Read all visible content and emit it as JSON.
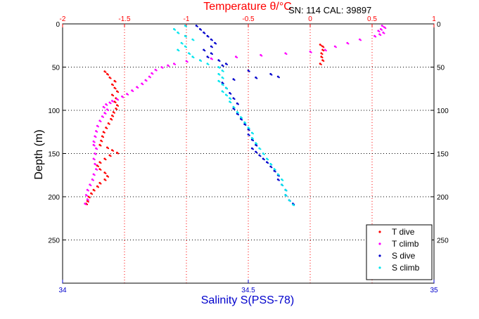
{
  "chart_data": {
    "type": "scatter",
    "top_axis": {
      "label": "Temperature θ/°C",
      "range": [
        -2,
        1
      ],
      "ticks": [
        -2,
        -1.5,
        -1,
        -0.5,
        0,
        0.5,
        1
      ],
      "tick_labels": [
        "-2",
        "-1.5",
        "-1",
        "-0.5",
        "0",
        "0.5",
        "1"
      ],
      "color": "#ff0000"
    },
    "bottom_axis": {
      "label": "Salinity S(PSS-78)",
      "range": [
        34,
        35
      ],
      "ticks": [
        34,
        34.5,
        35
      ],
      "tick_labels": [
        "34",
        "34.5",
        "35"
      ],
      "color": "#0000cc"
    },
    "y_axis": {
      "label": "Depth (m)",
      "range": [
        0,
        300
      ],
      "reversed": true,
      "ticks": [
        0,
        50,
        100,
        150,
        200,
        250
      ],
      "tick_labels": [
        "0",
        "50",
        "100",
        "150",
        "200",
        "250"
      ]
    },
    "annotation": "SN: 114  CAL: 39897",
    "grid": "dotted",
    "legend_position": "bottom-right",
    "series": [
      {
        "name": "T dive",
        "axis": "temperature",
        "color": "#ff0000",
        "points": [
          [
            0.08,
            24
          ],
          [
            0.1,
            26
          ],
          [
            0.1,
            30
          ],
          [
            0.09,
            34
          ],
          [
            0.09,
            38
          ],
          [
            0.1,
            42
          ],
          [
            0.08,
            46
          ],
          [
            -1.66,
            55
          ],
          [
            -1.64,
            58
          ],
          [
            -1.62,
            62
          ],
          [
            -1.58,
            66
          ],
          [
            -1.6,
            70
          ],
          [
            -1.58,
            74
          ],
          [
            -1.56,
            78
          ],
          [
            -1.6,
            82
          ],
          [
            -1.57,
            86
          ],
          [
            -1.58,
            90
          ],
          [
            -1.56,
            94
          ],
          [
            -1.57,
            98
          ],
          [
            -1.59,
            102
          ],
          [
            -1.6,
            106
          ],
          [
            -1.61,
            110
          ],
          [
            -1.63,
            115
          ],
          [
            -1.65,
            120
          ],
          [
            -1.67,
            125
          ],
          [
            -1.68,
            130
          ],
          [
            -1.69,
            135
          ],
          [
            -1.7,
            140
          ],
          [
            -1.64,
            143
          ],
          [
            -1.6,
            146
          ],
          [
            -1.56,
            149
          ],
          [
            -1.62,
            152
          ],
          [
            -1.66,
            156
          ],
          [
            -1.7,
            160
          ],
          [
            -1.72,
            164
          ],
          [
            -1.7,
            168
          ],
          [
            -1.66,
            172
          ],
          [
            -1.64,
            176
          ],
          [
            -1.66,
            180
          ],
          [
            -1.7,
            184
          ],
          [
            -1.72,
            188
          ],
          [
            -1.75,
            192
          ],
          [
            -1.77,
            196
          ],
          [
            -1.79,
            200
          ],
          [
            -1.8,
            205
          ],
          [
            -1.81,
            208
          ]
        ]
      },
      {
        "name": "T climb",
        "axis": "temperature",
        "color": "#ff00ff",
        "points": [
          [
            0.58,
            2
          ],
          [
            0.6,
            4
          ],
          [
            0.57,
            6
          ],
          [
            0.55,
            8
          ],
          [
            0.59,
            10
          ],
          [
            0.56,
            12
          ],
          [
            0.52,
            14
          ],
          [
            0.4,
            18
          ],
          [
            0.3,
            22
          ],
          [
            0.2,
            26
          ],
          [
            0.12,
            30
          ],
          [
            0.0,
            32
          ],
          [
            -0.2,
            34
          ],
          [
            -0.4,
            36
          ],
          [
            -0.6,
            38
          ],
          [
            -0.8,
            40
          ],
          [
            -1.0,
            43
          ],
          [
            -1.1,
            46
          ],
          [
            -1.15,
            48
          ],
          [
            -1.2,
            50
          ],
          [
            -1.25,
            53
          ],
          [
            -1.28,
            57
          ],
          [
            -1.3,
            61
          ],
          [
            -1.33,
            65
          ],
          [
            -1.36,
            69
          ],
          [
            -1.4,
            73
          ],
          [
            -1.44,
            77
          ],
          [
            -1.48,
            81
          ],
          [
            -1.52,
            84
          ],
          [
            -1.56,
            87
          ],
          [
            -1.6,
            89
          ],
          [
            -1.62,
            91
          ],
          [
            -1.65,
            93
          ],
          [
            -1.67,
            96
          ],
          [
            -1.64,
            99
          ],
          [
            -1.66,
            103
          ],
          [
            -1.68,
            107
          ],
          [
            -1.7,
            112
          ],
          [
            -1.72,
            118
          ],
          [
            -1.73,
            124
          ],
          [
            -1.74,
            130
          ],
          [
            -1.75,
            136
          ],
          [
            -1.75,
            140
          ],
          [
            -1.73,
            144
          ],
          [
            -1.74,
            150
          ],
          [
            -1.75,
            156
          ],
          [
            -1.74,
            162
          ],
          [
            -1.73,
            168
          ],
          [
            -1.75,
            174
          ],
          [
            -1.76,
            180
          ],
          [
            -1.78,
            186
          ],
          [
            -1.8,
            192
          ],
          [
            -1.81,
            198
          ],
          [
            -1.8,
            203
          ],
          [
            -1.82,
            208
          ]
        ]
      },
      {
        "name": "S dive",
        "axis": "salinity",
        "color": "#0000cc",
        "points": [
          [
            34.36,
            2
          ],
          [
            34.37,
            6
          ],
          [
            34.38,
            10
          ],
          [
            34.39,
            14
          ],
          [
            34.4,
            18
          ],
          [
            34.41,
            22
          ],
          [
            34.4,
            26
          ],
          [
            34.38,
            30
          ],
          [
            34.4,
            34
          ],
          [
            34.39,
            38
          ],
          [
            34.42,
            42
          ],
          [
            34.44,
            46
          ],
          [
            34.43,
            48
          ],
          [
            34.5,
            54
          ],
          [
            34.56,
            58
          ],
          [
            34.58,
            61
          ],
          [
            34.52,
            62
          ],
          [
            34.46,
            64
          ],
          [
            34.43,
            68
          ],
          [
            34.44,
            74
          ],
          [
            34.45,
            80
          ],
          [
            34.46,
            86
          ],
          [
            34.47,
            92
          ],
          [
            34.46,
            98
          ],
          [
            34.47,
            104
          ],
          [
            34.48,
            110
          ],
          [
            34.49,
            116
          ],
          [
            34.5,
            122
          ],
          [
            34.5,
            128
          ],
          [
            34.51,
            134
          ],
          [
            34.52,
            140
          ],
          [
            34.51,
            144
          ],
          [
            34.52,
            148
          ],
          [
            34.53,
            152
          ],
          [
            34.54,
            156
          ],
          [
            34.55,
            160
          ],
          [
            34.56,
            165
          ],
          [
            34.57,
            170
          ],
          [
            34.58,
            175
          ],
          [
            34.58,
            180
          ],
          [
            34.59,
            186
          ],
          [
            34.6,
            192
          ],
          [
            34.6,
            198
          ],
          [
            34.61,
            204
          ],
          [
            34.62,
            208
          ]
        ]
      },
      {
        "name": "S climb",
        "axis": "salinity",
        "color": "#00e5ee",
        "points": [
          [
            34.33,
            2
          ],
          [
            34.3,
            6
          ],
          [
            34.31,
            10
          ],
          [
            34.33,
            14
          ],
          [
            34.35,
            18
          ],
          [
            34.32,
            22
          ],
          [
            34.33,
            26
          ],
          [
            34.31,
            30
          ],
          [
            34.34,
            34
          ],
          [
            34.35,
            38
          ],
          [
            34.37,
            42
          ],
          [
            34.39,
            46
          ],
          [
            34.42,
            50
          ],
          [
            34.43,
            54
          ],
          [
            34.42,
            58
          ],
          [
            34.43,
            62
          ],
          [
            34.42,
            66
          ],
          [
            34.43,
            70
          ],
          [
            34.44,
            74
          ],
          [
            34.43,
            78
          ],
          [
            34.44,
            82
          ],
          [
            34.45,
            86
          ],
          [
            34.45,
            90
          ],
          [
            34.46,
            96
          ],
          [
            34.47,
            102
          ],
          [
            34.48,
            108
          ],
          [
            34.49,
            114
          ],
          [
            34.5,
            120
          ],
          [
            34.51,
            126
          ],
          [
            34.51,
            132
          ],
          [
            34.52,
            138
          ],
          [
            34.53,
            144
          ],
          [
            34.54,
            150
          ],
          [
            34.55,
            156
          ],
          [
            34.56,
            162
          ],
          [
            34.57,
            168
          ],
          [
            34.58,
            174
          ],
          [
            34.59,
            180
          ],
          [
            34.59,
            186
          ],
          [
            34.6,
            192
          ],
          [
            34.6,
            198
          ],
          [
            34.61,
            204
          ],
          [
            34.62,
            209
          ]
        ]
      }
    ]
  }
}
